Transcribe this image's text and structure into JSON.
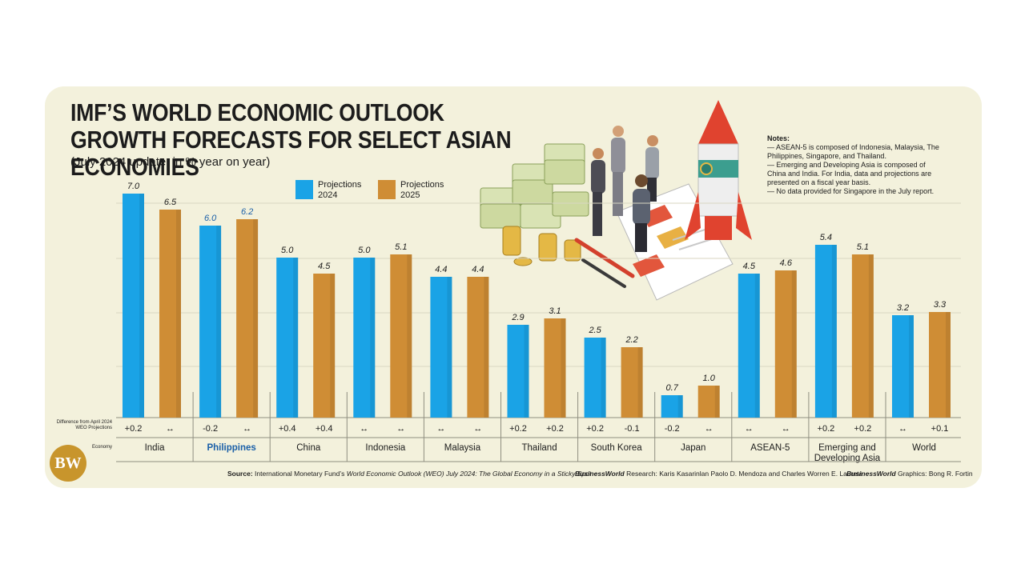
{
  "title": "IMF’S WORLD ECONOMIC OUTLOOK GROWTH FORECASTS FOR SELECT ASIAN ECONOMIES",
  "subtitle": "(July 2024 update, in % year on year)",
  "legend": [
    {
      "label": "Projections 2024",
      "color": "#1aa3e6"
    },
    {
      "label": "Projections 2025",
      "color": "#cf8d35"
    }
  ],
  "notes": {
    "heading": "Notes:",
    "lines": [
      "— ASEAN-5 is composed of Indonesia, Malaysia, The Philippines, Singapore, and Thailand.",
      "— Emerging and Developing Asia is composed of China and India. For India, data and projections are presented on a fiscal year basis.",
      "— No data provided for Singapore in the July report."
    ]
  },
  "row_labels": {
    "difference": "Difference from April 2024 WEO Projections",
    "economy": "Economy"
  },
  "chart_data": {
    "type": "bar",
    "title": "IMF’S WORLD ECONOMIC OUTLOOK GROWTH FORECASTS FOR SELECT ASIAN ECONOMIES",
    "subtitle": "(July 2024 update, in % year on year)",
    "categories": [
      "India",
      "Philippines",
      "China",
      "Indonesia",
      "Malaysia",
      "Thailand",
      "South Korea",
      "Japan",
      "ASEAN-5",
      "Emerging and Developing Asia",
      "World"
    ],
    "highlight": "Philippines",
    "highlight_color": "#1a5fa8",
    "series": [
      {
        "name": "Projections 2024",
        "color": "#1aa3e6",
        "values": [
          7.0,
          6.0,
          5.0,
          5.0,
          4.4,
          2.9,
          2.5,
          0.7,
          4.5,
          5.4,
          3.2
        ],
        "labels": [
          "7.0",
          "6.0",
          "5.0",
          "5.0",
          "4.4",
          "2.9",
          "2.5",
          "0.7",
          "4.5",
          "5.4",
          "3.2"
        ],
        "difference": [
          "+0.2",
          "-0.2",
          "+0.4",
          "↔",
          "↔",
          "+0.2",
          "+0.2",
          "-0.2",
          "↔",
          "+0.2",
          "↔"
        ]
      },
      {
        "name": "Projections 2025",
        "color": "#cf8d35",
        "values": [
          6.5,
          6.2,
          4.5,
          5.1,
          4.4,
          3.1,
          2.2,
          1.0,
          4.6,
          5.1,
          3.3
        ],
        "labels": [
          "6.5",
          "6.2",
          "4.5",
          "5.1",
          "4.4",
          "3.1",
          "2.2",
          "1.0",
          "4.6",
          "5.1",
          "3.3"
        ],
        "difference": [
          "↔",
          "↔",
          "+0.4",
          "↔",
          "↔",
          "+0.2",
          "-0.1",
          "↔",
          "↔",
          "+0.2",
          "+0.1"
        ]
      }
    ],
    "ylim": [
      0,
      7.5
    ],
    "grid": true,
    "legend_position": "top-center"
  },
  "footer": {
    "source_label": "Source:",
    "source_text": "International Monetary Fund’s",
    "source_italic": "World Economic Outlook (WEO) July 2024: The Global Economy in a Sticky Spot",
    "research_brand": "BusinessWorld",
    "research_label": "Research:",
    "research_text": "Karis Kasarinlan Paolo D. Mendoza and Charles Worren E. Laureta",
    "graphics_brand": "BusinessWorld",
    "graphics_label": "Graphics:",
    "graphics_text": "Bong R. Fortin"
  },
  "logo_text": "BW"
}
